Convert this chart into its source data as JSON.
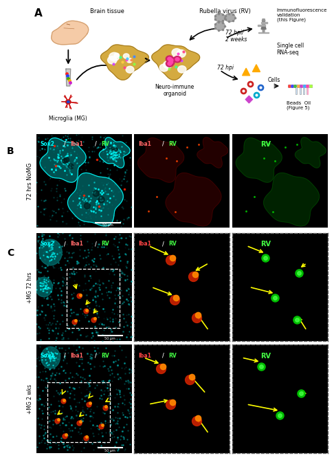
{
  "panel_A_label": "A",
  "panel_B_label": "B",
  "panel_C_label": "C",
  "panel_B_ylabel": "72 hrs NoMG",
  "panel_C_row1_ylabel": "+MG 72 hrs",
  "panel_C_row2_ylabel": "+MG 2 wks",
  "scale_bar_text": "50 μm",
  "fig_bg": "#ffffff",
  "immuno_text": "Immunofluorescence\nvalidation\n(this Figure)",
  "scrna_text": "Single cell\nRNA-seq",
  "beads_oil_text": "Beads  Oil\n(Figure 5)",
  "cells_text": "Cells",
  "neuro_text": "Neuro-immune\norganoid",
  "microglia_text": "Microglia (MG)",
  "brain_text": "Brain tissue",
  "rv_text": "Rubella virus (RV)",
  "time_label1": "72 hpi/\n2 weeks",
  "time_label2": "72 hpi",
  "sox2_color": "#00ffff",
  "iba1_color": "#ff6666",
  "rv_color": "#44ff44",
  "yellow_arrow": "#ffff00",
  "white_color": "#ffffff",
  "black_color": "#000000"
}
